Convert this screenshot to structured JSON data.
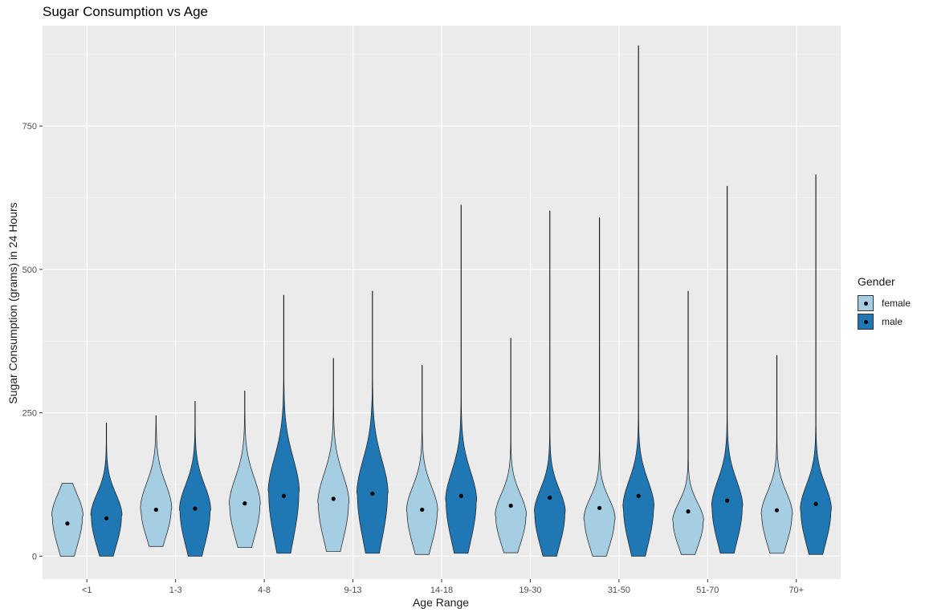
{
  "chart_data": {
    "type": "violin",
    "title": "Sugar Consumption vs Age",
    "xlabel": "Age Range",
    "ylabel": "Sugar Consumption (grams) in 24 Hours",
    "ylim": [
      -40,
      925
    ],
    "yticks": [
      0,
      250,
      500,
      750
    ],
    "grid": true,
    "legend_title": "Gender",
    "legend_position": "right",
    "categories": [
      "<1",
      "1-3",
      "4-8",
      "9-13",
      "14-18",
      "19-30",
      "31-50",
      "51-70",
      "70+"
    ],
    "series": [
      {
        "name": "female",
        "color": "#a6cee3",
        "min": [
          0,
          17,
          15,
          8,
          3,
          6,
          0,
          3,
          5
        ],
        "max": [
          127,
          245,
          288,
          345,
          333,
          380,
          590,
          462,
          350
        ],
        "mode": [
          70,
          82,
          88,
          92,
          78,
          70,
          65,
          60,
          72
        ],
        "mean": [
          57,
          81,
          92,
          100,
          81,
          88,
          84,
          78,
          80
        ]
      },
      {
        "name": "male",
        "color": "#1f78b4",
        "min": [
          0,
          0,
          5,
          5,
          5,
          0,
          0,
          5,
          3
        ],
        "max": [
          232,
          270,
          455,
          462,
          612,
          602,
          890,
          645,
          665
        ],
        "mode": [
          70,
          80,
          110,
          108,
          95,
          75,
          85,
          85,
          80
        ],
        "mean": [
          66,
          83,
          105,
          109,
          105,
          102,
          105,
          97,
          91
        ]
      }
    ]
  }
}
